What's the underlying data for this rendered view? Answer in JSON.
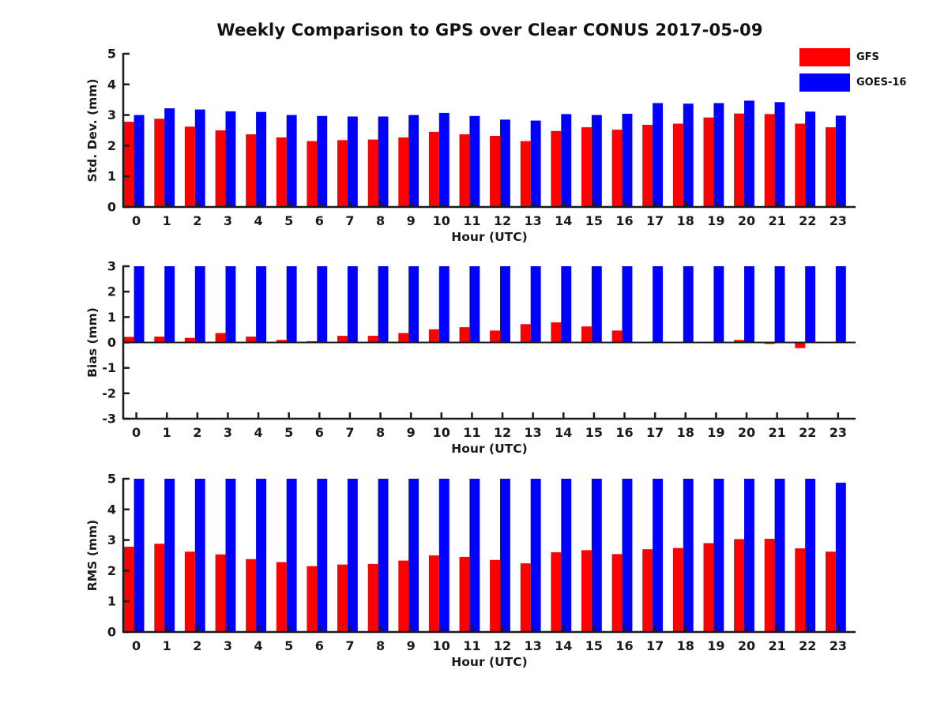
{
  "figure": {
    "title": "Weekly Comparison to GPS over Clear CONUS 2017-05-09",
    "legend": [
      {
        "label": "GFS",
        "color": "#ff0000"
      },
      {
        "label": "GOES-16",
        "color": "#0000ff"
      }
    ]
  },
  "chart_data": [
    {
      "type": "bar",
      "name": "std-dev",
      "ylabel": "Std. Dev. (mm)",
      "xlabel": "Hour (UTC)",
      "categories": [
        0,
        1,
        2,
        3,
        4,
        5,
        6,
        7,
        8,
        9,
        10,
        11,
        12,
        13,
        14,
        15,
        16,
        17,
        18,
        19,
        20,
        21,
        22,
        23
      ],
      "ylim": [
        0,
        5
      ],
      "yticks": [
        0,
        1,
        2,
        3,
        4,
        5
      ],
      "grid": false,
      "legend_position": "upper right, outside axes",
      "series": [
        {
          "name": "GFS",
          "color": "#ff0000",
          "values": [
            2.78,
            2.88,
            2.62,
            2.5,
            2.37,
            2.27,
            2.15,
            2.18,
            2.2,
            2.27,
            2.45,
            2.37,
            2.32,
            2.15,
            2.48,
            2.6,
            2.52,
            2.68,
            2.72,
            2.92,
            3.05,
            3.03,
            2.72,
            2.6
          ]
        },
        {
          "name": "GOES-16",
          "color": "#0000ff",
          "values": [
            3.0,
            3.22,
            3.18,
            3.12,
            3.1,
            3.0,
            2.97,
            2.95,
            2.95,
            3.0,
            3.07,
            2.97,
            2.85,
            2.82,
            3.03,
            3.0,
            3.04,
            3.39,
            3.37,
            3.39,
            3.47,
            3.42,
            3.11,
            2.98
          ]
        }
      ]
    },
    {
      "type": "bar",
      "name": "bias",
      "ylabel": "Bias (mm)",
      "xlabel": "Hour (UTC)",
      "categories": [
        0,
        1,
        2,
        3,
        4,
        5,
        6,
        7,
        8,
        9,
        10,
        11,
        12,
        13,
        14,
        15,
        16,
        17,
        18,
        19,
        20,
        21,
        22,
        23
      ],
      "ylim": [
        -3,
        3
      ],
      "yticks": [
        3,
        2,
        1,
        0,
        -1,
        -2,
        -3
      ],
      "grid": false,
      "series": [
        {
          "name": "GFS",
          "color": "#ff0000",
          "values": [
            0.22,
            0.23,
            0.18,
            0.37,
            0.23,
            0.1,
            0.05,
            0.26,
            0.26,
            0.37,
            0.52,
            0.6,
            0.47,
            0.72,
            0.79,
            0.63,
            0.47,
            0.03,
            0.0,
            0.0,
            0.1,
            -0.06,
            -0.22,
            0.0
          ]
        },
        {
          "name": "GOES-16",
          "color": "#0000ff",
          "values": [
            3,
            3,
            3,
            3,
            3,
            3,
            3,
            3,
            3,
            3,
            3,
            3,
            3,
            3,
            3,
            3,
            3,
            3,
            3,
            3,
            3,
            3,
            3,
            3
          ]
        }
      ]
    },
    {
      "type": "bar",
      "name": "rms",
      "ylabel": "RMS (mm)",
      "xlabel": "Hour (UTC)",
      "categories": [
        0,
        1,
        2,
        3,
        4,
        5,
        6,
        7,
        8,
        9,
        10,
        11,
        12,
        13,
        14,
        15,
        16,
        17,
        18,
        19,
        20,
        21,
        22,
        23
      ],
      "ylim": [
        0,
        5
      ],
      "yticks": [
        0,
        1,
        2,
        3,
        4,
        5
      ],
      "grid": false,
      "series": [
        {
          "name": "GFS",
          "color": "#ff0000",
          "values": [
            2.78,
            2.88,
            2.62,
            2.53,
            2.38,
            2.28,
            2.15,
            2.2,
            2.22,
            2.33,
            2.5,
            2.45,
            2.35,
            2.24,
            2.6,
            2.67,
            2.54,
            2.7,
            2.74,
            2.9,
            3.03,
            3.04,
            2.73,
            2.62
          ]
        },
        {
          "name": "GOES-16",
          "color": "#0000ff",
          "values": [
            5,
            5,
            5,
            5,
            5,
            5,
            5,
            5,
            5,
            5,
            5,
            5,
            5,
            5,
            5,
            5,
            5,
            5,
            5,
            5,
            5,
            5,
            5,
            4.87
          ]
        }
      ]
    }
  ]
}
